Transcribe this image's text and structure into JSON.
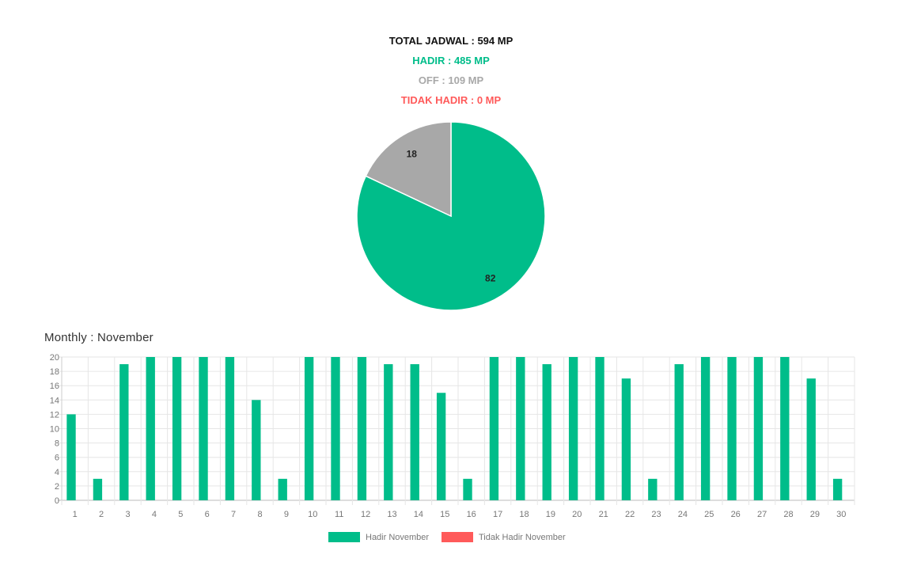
{
  "summary": {
    "total": "TOTAL JADWAL : 594 MP",
    "hadir": "HADIR : 485 MP",
    "off": "OFF : 109 MP",
    "tidak_hadir": "TIDAK HADIR : 0 MP"
  },
  "colors": {
    "hadir": "#00bd8a",
    "off": "#a8a8a8",
    "tidak_hadir": "#ff5a5a",
    "total": "#111111"
  },
  "monthly_title": "Monthly : November",
  "chart_data": [
    {
      "type": "pie",
      "slices": [
        {
          "label": "Hadir",
          "value": 82,
          "color": "#00bd8a"
        },
        {
          "label": "Off",
          "value": 18,
          "color": "#a8a8a8"
        }
      ],
      "data_labels": [
        "82",
        "18"
      ]
    },
    {
      "type": "bar",
      "categories": [
        "1",
        "2",
        "3",
        "4",
        "5",
        "6",
        "7",
        "8",
        "9",
        "10",
        "11",
        "12",
        "13",
        "14",
        "15",
        "16",
        "17",
        "18",
        "19",
        "20",
        "21",
        "22",
        "23",
        "24",
        "25",
        "26",
        "27",
        "28",
        "29",
        "30"
      ],
      "series": [
        {
          "name": "Hadir November",
          "color": "#00bd8a",
          "values": [
            12,
            3,
            19,
            20,
            20,
            20,
            20,
            14,
            3,
            20,
            20,
            20,
            19,
            19,
            15,
            3,
            20,
            20,
            19,
            20,
            20,
            17,
            3,
            19,
            20,
            20,
            20,
            20,
            17,
            3
          ]
        },
        {
          "name": "Tidak Hadir November",
          "color": "#ff5a5a",
          "values": [
            0,
            0,
            0,
            0,
            0,
            0,
            0,
            0,
            0,
            0,
            0,
            0,
            0,
            0,
            0,
            0,
            0,
            0,
            0,
            0,
            0,
            0,
            0,
            0,
            0,
            0,
            0,
            0,
            0,
            0
          ]
        }
      ],
      "ylim": [
        0,
        20
      ],
      "yticks": [
        0,
        2,
        4,
        6,
        8,
        10,
        12,
        14,
        16,
        18,
        20
      ],
      "grid": true,
      "legend": "bottom"
    }
  ]
}
